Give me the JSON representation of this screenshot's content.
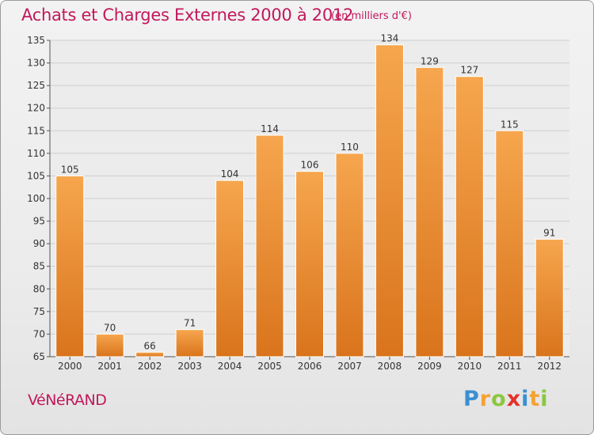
{
  "header": {
    "title": "Achats et Charges Externes 2000 à 2012",
    "unit": "(en milliers d'€)"
  },
  "footer": {
    "commune": "VéNéRAND",
    "logo_letters": [
      {
        "ch": "P",
        "color": "#3a8fd1"
      },
      {
        "ch": "r",
        "color": "#f4a233"
      },
      {
        "ch": "o",
        "color": "#8cc63f"
      },
      {
        "ch": "x",
        "color": "#e4322b"
      },
      {
        "ch": "i",
        "color": "#3a8fd1"
      },
      {
        "ch": "t",
        "color": "#f4a233"
      },
      {
        "ch": "i",
        "color": "#8cc63f"
      }
    ]
  },
  "colors": {
    "bar_light": "#f6a64e",
    "bar_dark": "#d9741c",
    "grid": "#cfcfcf",
    "axis": "#555555",
    "title": "#c2185b"
  },
  "chart_data": {
    "type": "bar",
    "categories": [
      "2000",
      "2001",
      "2002",
      "2003",
      "2004",
      "2005",
      "2006",
      "2007",
      "2008",
      "2009",
      "2010",
      "2011",
      "2012"
    ],
    "values": [
      105,
      70,
      66,
      71,
      104,
      114,
      106,
      110,
      134,
      129,
      127,
      115,
      91
    ],
    "ylim": [
      65,
      135
    ],
    "yticks": [
      65,
      70,
      75,
      80,
      85,
      90,
      95,
      100,
      105,
      110,
      115,
      120,
      125,
      130,
      135
    ],
    "grid": true,
    "title": "Achats et Charges Externes 2000 à 2012",
    "xlabel": "",
    "ylabel": ""
  }
}
